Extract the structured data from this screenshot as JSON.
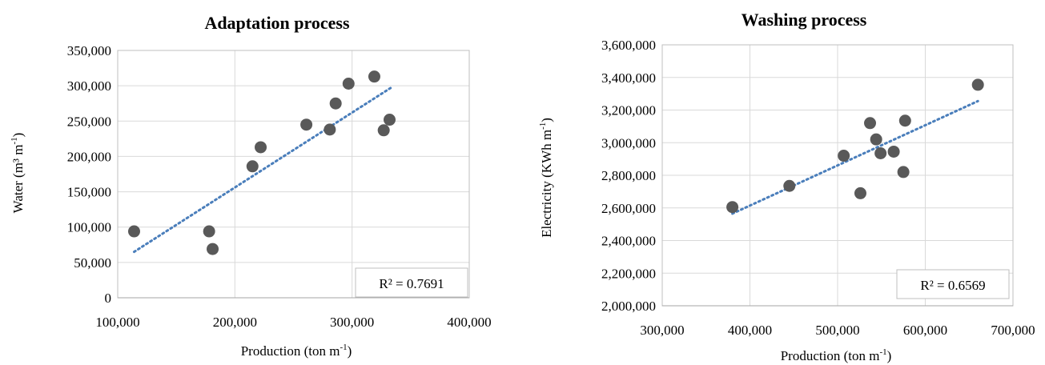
{
  "chart_data": [
    {
      "type": "scatter",
      "title": "Adaptation process",
      "xlabel": "Production (ton m-1)",
      "xlabel_main": "Production (ton m",
      "xlabel_sup": "-1",
      "xlabel_end": ")",
      "ylabel": "Water (m³ m-1)",
      "ylabel_main": "Water (m³ m",
      "ylabel_sup": "-1",
      "ylabel_end": ")",
      "xlim": [
        100000,
        400000
      ],
      "ylim": [
        0,
        350000
      ],
      "x_ticks": [
        100000,
        200000,
        300000,
        400000
      ],
      "x_tick_labels": [
        "100,000",
        "200,000",
        "300,000",
        "400,000"
      ],
      "y_ticks": [
        0,
        50000,
        100000,
        150000,
        200000,
        250000,
        300000,
        350000
      ],
      "y_tick_labels": [
        "0",
        "50,000",
        "100,000",
        "150,000",
        "200,000",
        "250,000",
        "300,000",
        "350,000"
      ],
      "grid": true,
      "r2_text": "R² = 0.7691",
      "trendline": {
        "x": [
          114000,
          333000
        ],
        "y": [
          65000,
          297000
        ]
      },
      "point_color": "#595959",
      "trend_color": "#4a7ebb",
      "points": [
        {
          "x": 114000,
          "y": 94000
        },
        {
          "x": 178000,
          "y": 94000
        },
        {
          "x": 181000,
          "y": 69000
        },
        {
          "x": 215000,
          "y": 186000
        },
        {
          "x": 222000,
          "y": 213000
        },
        {
          "x": 261000,
          "y": 245000
        },
        {
          "x": 281000,
          "y": 238000
        },
        {
          "x": 286000,
          "y": 275000
        },
        {
          "x": 297000,
          "y": 303000
        },
        {
          "x": 319000,
          "y": 313000
        },
        {
          "x": 327000,
          "y": 237000
        },
        {
          "x": 332000,
          "y": 252000
        }
      ]
    },
    {
      "type": "scatter",
      "title": "Washing process",
      "xlabel": "Production (ton m-1)",
      "xlabel_main": "Production (ton m",
      "xlabel_sup": "-1",
      "xlabel_end": ")",
      "ylabel": "Electricity (KWh m-1)",
      "ylabel_main": "Electricity (KWh m",
      "ylabel_sup": "-1",
      "ylabel_end": ")",
      "xlim": [
        300000,
        700000
      ],
      "ylim": [
        2000000,
        3600000
      ],
      "x_ticks": [
        300000,
        400000,
        500000,
        600000,
        700000
      ],
      "x_tick_labels": [
        "300,000",
        "400,000",
        "500,000",
        "600,000",
        "700,000"
      ],
      "y_ticks": [
        2000000,
        2200000,
        2400000,
        2600000,
        2800000,
        3000000,
        3200000,
        3400000,
        3600000
      ],
      "y_tick_labels": [
        "2,000,000",
        "2,200,000",
        "2,400,000",
        "2,600,000",
        "2,800,000",
        "3,000,000",
        "3,200,000",
        "3,400,000",
        "3,600,000"
      ],
      "grid": true,
      "r2_text": "R² = 0.6569",
      "trendline": {
        "x": [
          380000,
          660000
        ],
        "y": [
          2565000,
          3255000
        ]
      },
      "point_color": "#595959",
      "trend_color": "#4a7ebb",
      "points": [
        {
          "x": 380000,
          "y": 2605000
        },
        {
          "x": 445000,
          "y": 2735000
        },
        {
          "x": 507000,
          "y": 2920000
        },
        {
          "x": 526000,
          "y": 2690000
        },
        {
          "x": 537000,
          "y": 3120000
        },
        {
          "x": 544000,
          "y": 3020000
        },
        {
          "x": 549000,
          "y": 2935000
        },
        {
          "x": 564000,
          "y": 2945000
        },
        {
          "x": 575000,
          "y": 2820000
        },
        {
          "x": 577000,
          "y": 3135000
        },
        {
          "x": 660000,
          "y": 3355000
        }
      ]
    }
  ]
}
